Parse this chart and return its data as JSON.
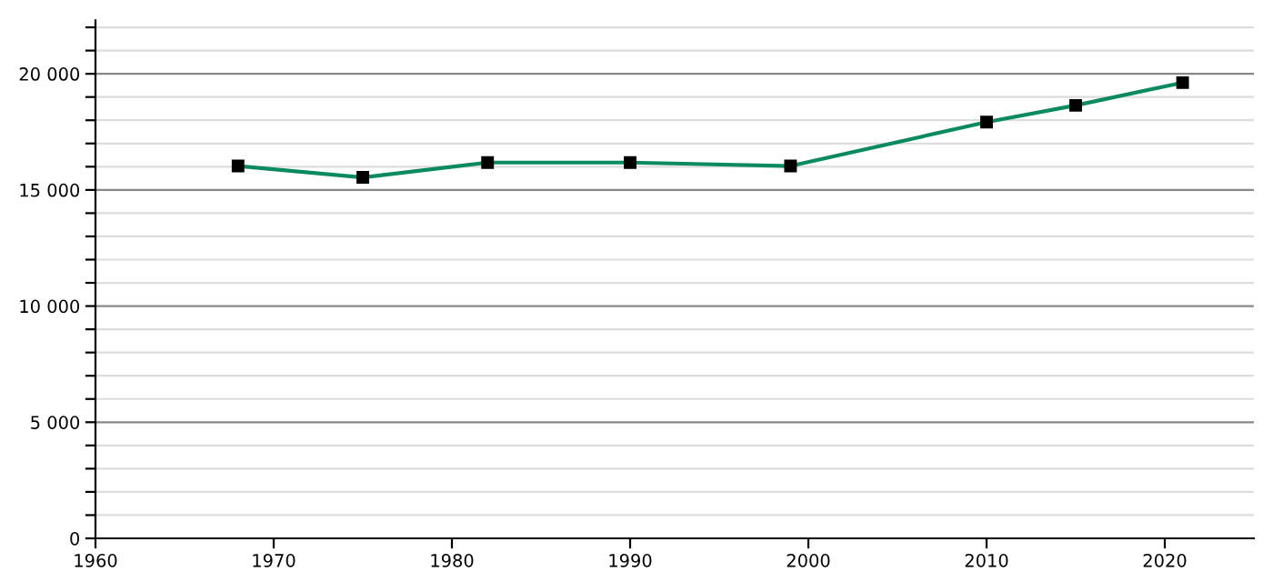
{
  "chart_data": {
    "type": "line",
    "x": [
      1968,
      1975,
      1982,
      1990,
      1999,
      2010,
      2015,
      2021
    ],
    "series": [
      {
        "color": "#0b8a62",
        "values": [
          16030,
          15540,
          16180,
          16180,
          16030,
          17920,
          18640,
          19620
        ]
      }
    ],
    "marker": "square",
    "line_style": "solid",
    "grid": "y",
    "legend": false,
    "xlim": [
      1960,
      2025
    ],
    "xticks": [
      1960,
      1970,
      1980,
      1990,
      2000,
      2010,
      2020
    ],
    "ylim": [
      0,
      22300
    ],
    "yticks": [
      {
        "value": 0,
        "label": "0"
      },
      {
        "value": 1000,
        "label": null
      },
      {
        "value": 2000,
        "label": null
      },
      {
        "value": 3000,
        "label": null
      },
      {
        "value": 4000,
        "label": null
      },
      {
        "value": 5000,
        "label": "5 000"
      },
      {
        "value": 6000,
        "label": null
      },
      {
        "value": 7000,
        "label": null
      },
      {
        "value": 8000,
        "label": null
      },
      {
        "value": 9000,
        "label": null
      },
      {
        "value": 10000,
        "label": "10 000"
      },
      {
        "value": 11000,
        "label": null
      },
      {
        "value": 12000,
        "label": null
      },
      {
        "value": 13000,
        "label": null
      },
      {
        "value": 14000,
        "label": null
      },
      {
        "value": 15000,
        "label": "15 000"
      },
      {
        "value": 16000,
        "label": null
      },
      {
        "value": 17000,
        "label": null
      },
      {
        "value": 18000,
        "label": null
      },
      {
        "value": 19000,
        "label": null
      },
      {
        "value": 20000,
        "label": "20 000"
      },
      {
        "value": 21000,
        "label": null
      },
      {
        "value": 22000,
        "label": null
      }
    ]
  }
}
